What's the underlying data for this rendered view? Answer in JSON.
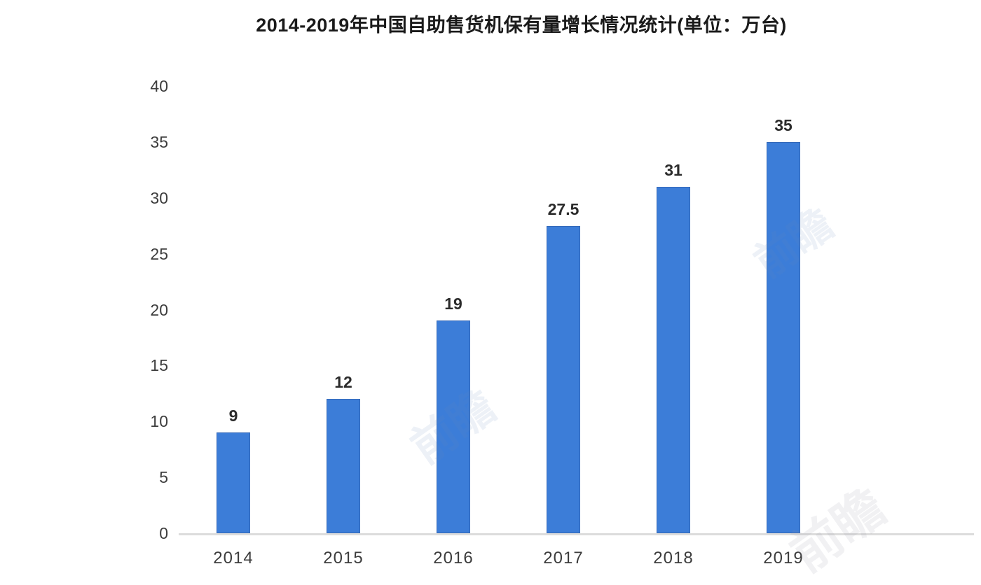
{
  "chart_data": {
    "type": "bar",
    "title": "2014-2019年中国自助售货机保有量增长情况统计(单位：万台)",
    "categories": [
      "2014",
      "2015",
      "2016",
      "2017",
      "2018",
      "2019"
    ],
    "values": [
      9,
      12,
      19,
      27.5,
      31,
      35
    ],
    "xlabel": "",
    "ylabel": "",
    "ylim": [
      0,
      40
    ],
    "yticks": [
      0,
      5,
      10,
      15,
      20,
      25,
      30,
      35,
      40
    ],
    "grid": false,
    "legend": "none",
    "data_labels_shown": true,
    "bar_color": "#3c7dd8",
    "axis_line_color": "#dcdcdc",
    "tick_text_color": "#3d3d3d",
    "title_color": "#1a1a1a",
    "value_label_color": "#2b2b2b"
  },
  "watermark": {
    "text": "前瞻"
  }
}
